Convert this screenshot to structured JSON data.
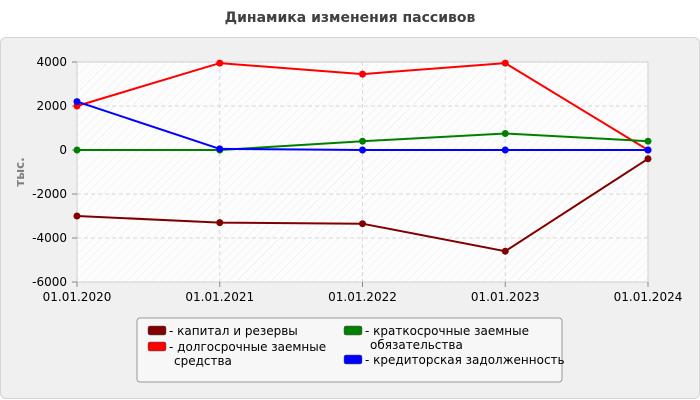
{
  "chart_data": {
    "type": "line",
    "title": "Динамика изменения пассивов",
    "xlabel": "",
    "ylabel": "тыс.",
    "categories": [
      "01.01.2020",
      "01.01.2021",
      "01.01.2022",
      "01.01.2023",
      "01.01.2024"
    ],
    "ylim": [
      -6000,
      4000
    ],
    "yticks": [
      -6000,
      -4000,
      -2000,
      0,
      2000,
      4000
    ],
    "grid": true,
    "legend_position": "bottom",
    "series": [
      {
        "name": "капитал и резервы",
        "color": "#800000",
        "values": [
          -3000,
          -3300,
          -3350,
          -4600,
          -400
        ]
      },
      {
        "name": "долгосрочные заемные средства",
        "color": "#ff0000",
        "values": [
          2000,
          3950,
          3450,
          3950,
          0
        ]
      },
      {
        "name": "краткосрочные заемные обязательства",
        "color": "#008000",
        "values": [
          0,
          0,
          400,
          750,
          400
        ]
      },
      {
        "name": "кредиторская задолженность",
        "color": "#0000ff",
        "values": [
          2200,
          50,
          0,
          0,
          0
        ]
      }
    ]
  }
}
